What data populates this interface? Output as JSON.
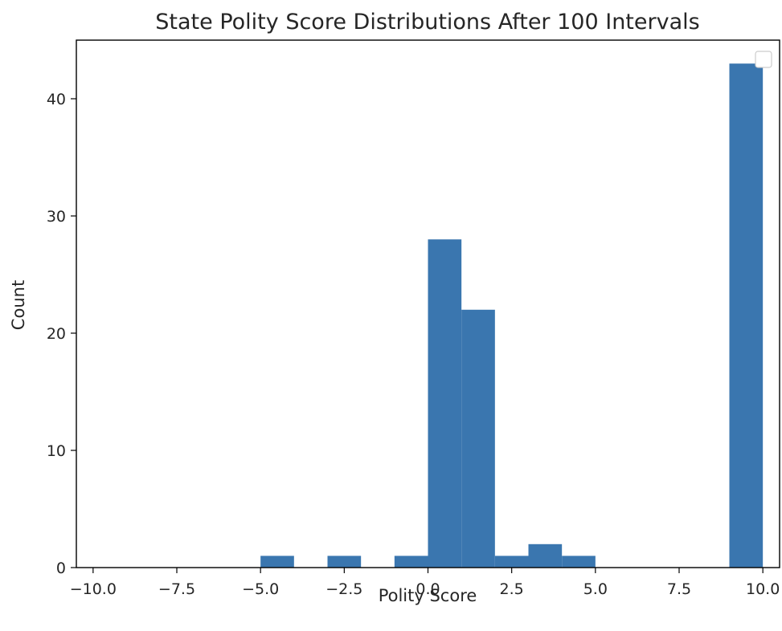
{
  "chart_data": {
    "type": "bar",
    "title": "State Polity Score Distributions After 100 Intervals",
    "xlabel": "Polity Score",
    "ylabel": "Count",
    "xlim": [
      -10.5,
      10.5
    ],
    "ylim": [
      0,
      45
    ],
    "x_ticks": [
      -10.0,
      -7.5,
      -5.0,
      -2.5,
      0.0,
      2.5,
      5.0,
      7.5,
      10.0
    ],
    "x_tick_labels": [
      "−10.0",
      "−7.5",
      "−5.0",
      "−2.5",
      "0.0",
      "2.5",
      "5.0",
      "7.5",
      "10.0"
    ],
    "y_ticks": [
      0,
      10,
      20,
      30,
      40
    ],
    "y_tick_labels": [
      "0",
      "10",
      "20",
      "30",
      "40"
    ],
    "bins": [
      {
        "x0": -5,
        "x1": -4,
        "count": 1
      },
      {
        "x0": -3,
        "x1": -2,
        "count": 1
      },
      {
        "x0": -1,
        "x1": 0,
        "count": 1
      },
      {
        "x0": 0,
        "x1": 1,
        "count": 28
      },
      {
        "x0": 1,
        "x1": 2,
        "count": 22
      },
      {
        "x0": 2,
        "x1": 3,
        "count": 1
      },
      {
        "x0": 3,
        "x1": 4,
        "count": 2
      },
      {
        "x0": 4,
        "x1": 5,
        "count": 1
      },
      {
        "x0": 9,
        "x1": 10,
        "count": 43
      }
    ],
    "bar_color": "#3a76af",
    "grid": false,
    "legend": {
      "placement": "top-right",
      "entries": []
    }
  }
}
